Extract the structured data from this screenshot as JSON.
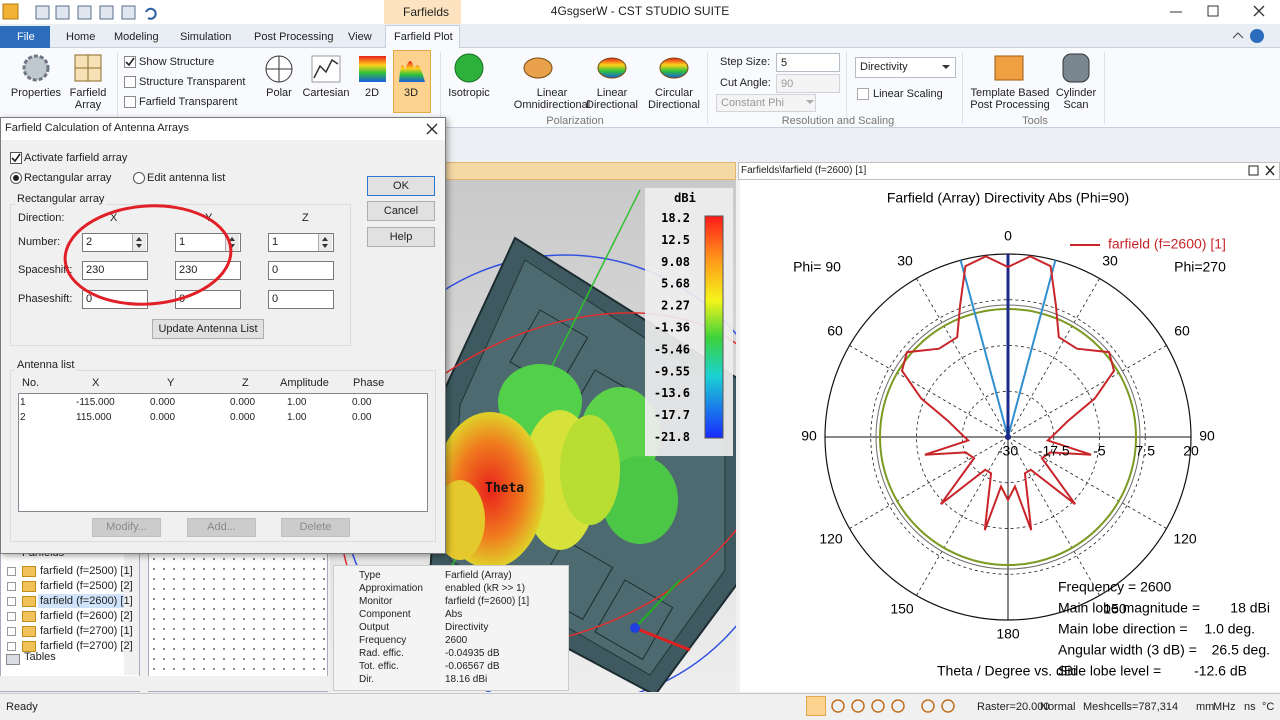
{
  "title_bar": {
    "context_tab": "Farfields",
    "title": "4GsgserW - CST STUDIO SUITE"
  },
  "tabs": [
    "File",
    "Home",
    "Modeling",
    "Simulation",
    "Post Processing",
    "View",
    "Farfield Plot"
  ],
  "ribbon": {
    "properties": "Properties",
    "farfield_array": "Farfield Array",
    "checks": [
      "Show Structure",
      "Structure Transparent",
      "Farfield Transparent"
    ],
    "plot_types": [
      "Polar",
      "Cartesian",
      "2D",
      "3D"
    ],
    "polarization": [
      "Isotropic",
      "Linear Omnidirectional",
      "Linear Directional",
      "Circular Directional"
    ],
    "polarization_group": "Polarization",
    "step_size_label": "Step Size:",
    "step_size": "5",
    "cut_angle_label": "Cut Angle:",
    "cut_angle": "90",
    "cut_mode": "Constant Phi",
    "quantity": "Directivity",
    "linear_scaling": "Linear Scaling",
    "resolution_group": "Resolution and Scaling",
    "tools": [
      "Template Based Post Processing",
      "Cylinder Scan"
    ],
    "tools_group": "Tools"
  },
  "dialog": {
    "title": "Farfield Calculation of Antenna Arrays",
    "activate": "Activate farfield array",
    "mode_rect": "Rectangular array",
    "mode_list": "Edit antenna list",
    "ok": "OK",
    "cancel": "Cancel",
    "help": "Help",
    "group": "Rectangular array",
    "direction": "Direction:",
    "axes": [
      "X",
      "Y",
      "Z"
    ],
    "params": [
      {
        "label": "Number:",
        "values": [
          "2",
          "1",
          "1"
        ]
      },
      {
        "label": "Spaceshift:",
        "values": [
          "230",
          "230",
          "0"
        ]
      },
      {
        "label": "Phaseshift:",
        "values": [
          "0",
          "0",
          "0"
        ]
      }
    ],
    "update": "Update Antenna List",
    "list_title": "Antenna list",
    "columns": [
      "No.",
      "X",
      "Y",
      "Z",
      "Amplitude",
      "Phase"
    ],
    "antennas": [
      [
        "1",
        "-115.000",
        "0.000",
        "0.000",
        "1.00",
        "0.00"
      ],
      [
        "2",
        "115.000",
        "0.000",
        "0.000",
        "1.00",
        "0.00"
      ]
    ],
    "actions": [
      "Modify...",
      "Add...",
      "Delete"
    ]
  },
  "tree": {
    "root": "Farfields",
    "items": [
      "farfield (f=2500) [1]",
      "farfield (f=2500) [2]",
      "farfield (f=2600) [1]",
      "farfield (f=2600) [2]",
      "farfield (f=2700) [1]",
      "farfield (f=2700) [2]"
    ],
    "tables": "Tables"
  },
  "view3d": {
    "unit": "dBi",
    "scale": [
      "18.2",
      "12.5",
      "9.08",
      "5.68",
      "2.27",
      "-1.36",
      "-5.46",
      "-9.55",
      "-13.6",
      "-17.7",
      "-21.8"
    ],
    "axis_label": "Theta",
    "info": [
      [
        "Type",
        "Farfield (Array)"
      ],
      [
        "Approximation",
        "enabled (kR >> 1)"
      ],
      [
        "Monitor",
        "farfield (f=2600) [1]"
      ],
      [
        "Component",
        "Abs"
      ],
      [
        "Output",
        "Directivity"
      ],
      [
        "Frequency",
        "2600"
      ],
      [
        "Rad. effic.",
        "-0.04935 dB"
      ],
      [
        "Tot. effic.",
        "-0.06567 dB"
      ],
      [
        "Dir.",
        "18.16 dBi"
      ]
    ]
  },
  "polar": {
    "panel_title": "Farfields\\farfield (f=2600) [1]",
    "title": "Farfield (Array) Directivity Abs (Phi=90)",
    "legend": "farfield (f=2600) [1]",
    "phi_left": "Phi= 90",
    "phi_right": "Phi=270",
    "top": "0",
    "bottom": "180",
    "angles": [
      "30",
      "60",
      "90",
      "120",
      "150"
    ],
    "radial": [
      "-30",
      "-17.5",
      "-5",
      "7.5",
      "20"
    ],
    "xlabel": "Theta / Degree vs. dBi",
    "results": [
      [
        "Frequency = 2600"
      ],
      [
        "Main lobe magnitude =",
        "18 dBi"
      ],
      [
        "Main lobe direction =",
        "1.0 deg."
      ],
      [
        "Angular width (3 dB) =",
        "26.5 deg."
      ],
      [
        "Side lobe level =",
        "-12.6 dB"
      ]
    ]
  },
  "status": {
    "ready": "Ready",
    "raster": "Raster=20.000",
    "mode": "Normal",
    "mesh": "Meshcells=787,314",
    "units": [
      "mm",
      "MHz",
      "ns",
      "°C"
    ]
  }
}
